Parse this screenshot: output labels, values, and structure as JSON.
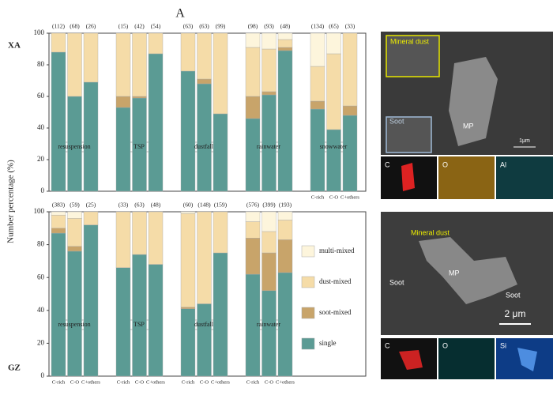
{
  "chart_data": [
    {
      "type": "stacked_bar",
      "title": "A",
      "panel_label": "XA",
      "ylabel": "Number percentage (%)",
      "ylim": [
        0,
        100
      ],
      "yticks": [
        0,
        20,
        40,
        60,
        80,
        100
      ],
      "groups": [
        "resuspension",
        "TSP",
        "dustfall",
        "rainwater",
        "snowwater"
      ],
      "categories": [
        null,
        null,
        null,
        null,
        null,
        null,
        null,
        null,
        null,
        null,
        null,
        null,
        "C-rich",
        "C-O",
        "C+others"
      ],
      "count_labels": [
        "(112)",
        "(68)",
        "(26)",
        "(15)",
        "(42)",
        "(54)",
        "(63)",
        "(63)",
        "(99)",
        "(98)",
        "(93)",
        "(48)",
        "(134)",
        "(65)",
        "(33)"
      ],
      "series": [
        {
          "color": "#5b9b94",
          "values": [
            88,
            60,
            69,
            53,
            59,
            87,
            76,
            68,
            49,
            46,
            61,
            89,
            52,
            39,
            48
          ]
        },
        {
          "color": "#c8a46a",
          "values": [
            0,
            0,
            0,
            7,
            1,
            0,
            0,
            3,
            0,
            14,
            2,
            2,
            5,
            0,
            6
          ]
        },
        {
          "color": "#f5dca8",
          "values": [
            12,
            40,
            31,
            40,
            40,
            13,
            24,
            29,
            51,
            31,
            27,
            5,
            22,
            48,
            46
          ]
        },
        {
          "color": "#fdf5dc",
          "values": [
            0,
            0,
            0,
            0,
            0,
            0,
            0,
            0,
            0,
            9,
            10,
            4,
            21,
            13,
            0
          ]
        }
      ]
    },
    {
      "type": "stacked_bar",
      "panel_label": "GZ",
      "ylim": [
        0,
        100
      ],
      "yticks": [
        0,
        20,
        40,
        60,
        80,
        100
      ],
      "groups": [
        "resuspension",
        "TSP",
        "dustfall",
        "rainwater"
      ],
      "categories": [
        "C-rich",
        "C-O",
        "C+others",
        "C-rich",
        "C-O",
        "C+others",
        "C-rich",
        "C-O",
        "C+others",
        "C-rich",
        "C-O",
        "C+others"
      ],
      "count_labels": [
        "(383)",
        "(59)",
        "(25)",
        "(33)",
        "(63)",
        "(48)",
        "(60)",
        "(148)",
        "(159)",
        "(576)",
        "(399)",
        "(193)"
      ],
      "series": [
        {
          "name": "single",
          "color": "#5b9b94",
          "values": [
            87,
            76,
            92,
            66,
            74,
            68,
            41,
            44,
            75,
            62,
            52,
            63
          ]
        },
        {
          "name": "soot-mixed",
          "color": "#c8a46a",
          "values": [
            3,
            3,
            0,
            0,
            0,
            0,
            1,
            0,
            0,
            22,
            23,
            20
          ]
        },
        {
          "name": "dust-mixed",
          "color": "#f5dca8",
          "values": [
            8,
            17,
            8,
            34,
            26,
            32,
            57,
            56,
            25,
            10,
            13,
            12
          ]
        },
        {
          "name": "multi-mixed",
          "color": "#fdf5dc",
          "values": [
            2,
            4,
            0,
            0,
            0,
            0,
            1,
            0,
            0,
            6,
            12,
            5
          ]
        }
      ]
    }
  ],
  "images": {
    "top": {
      "labels": [
        "Mineral dust",
        "Soot",
        "MP",
        "1μm"
      ],
      "maps": [
        "C",
        "O",
        "Al"
      ]
    },
    "bottom": {
      "labels": [
        "Mineral dust",
        "Soot",
        "Soot",
        "MP",
        "2 μm"
      ],
      "maps": [
        "C",
        "O",
        "Si"
      ]
    }
  }
}
